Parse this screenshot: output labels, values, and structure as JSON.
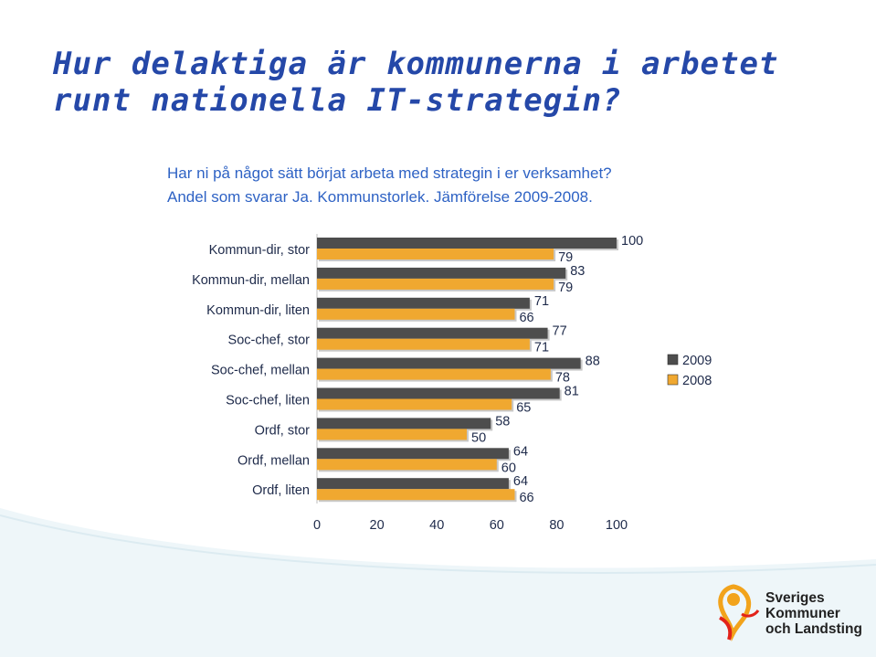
{
  "slide": {
    "title_line1": "Hur delaktiga är kommunerna i arbetet",
    "title_line2": "runt nationella IT-strategin?"
  },
  "chart_data": {
    "type": "bar",
    "orientation": "horizontal",
    "title": "Har ni på något sätt börjat arbeta med strategin i er verksamhet?",
    "subtitle": "Andel som svarar Ja. Kommunstorlek. Jämförelse 2009-2008.",
    "categories": [
      "Kommun-dir, stor",
      "Kommun-dir, mellan",
      "Kommun-dir, liten",
      "Soc-chef, stor",
      "Soc-chef, mellan",
      "Soc-chef, liten",
      "Ordf, stor",
      "Ordf, mellan",
      "Ordf, liten"
    ],
    "series": [
      {
        "name": "2009",
        "color": "#4d4d4d",
        "values": [
          100,
          83,
          71,
          77,
          88,
          81,
          58,
          64,
          64
        ]
      },
      {
        "name": "2008",
        "color": "#f0a830",
        "values": [
          79,
          79,
          66,
          71,
          78,
          65,
          50,
          60,
          66
        ]
      }
    ],
    "xlim": [
      0,
      100
    ],
    "xticks": [
      "0",
      "20",
      "40",
      "60",
      "80",
      "100"
    ],
    "legend_position": "right",
    "grid": false
  },
  "logo": {
    "line1": "Sveriges",
    "line2": "Kommuner",
    "line3": "och Landsting"
  }
}
